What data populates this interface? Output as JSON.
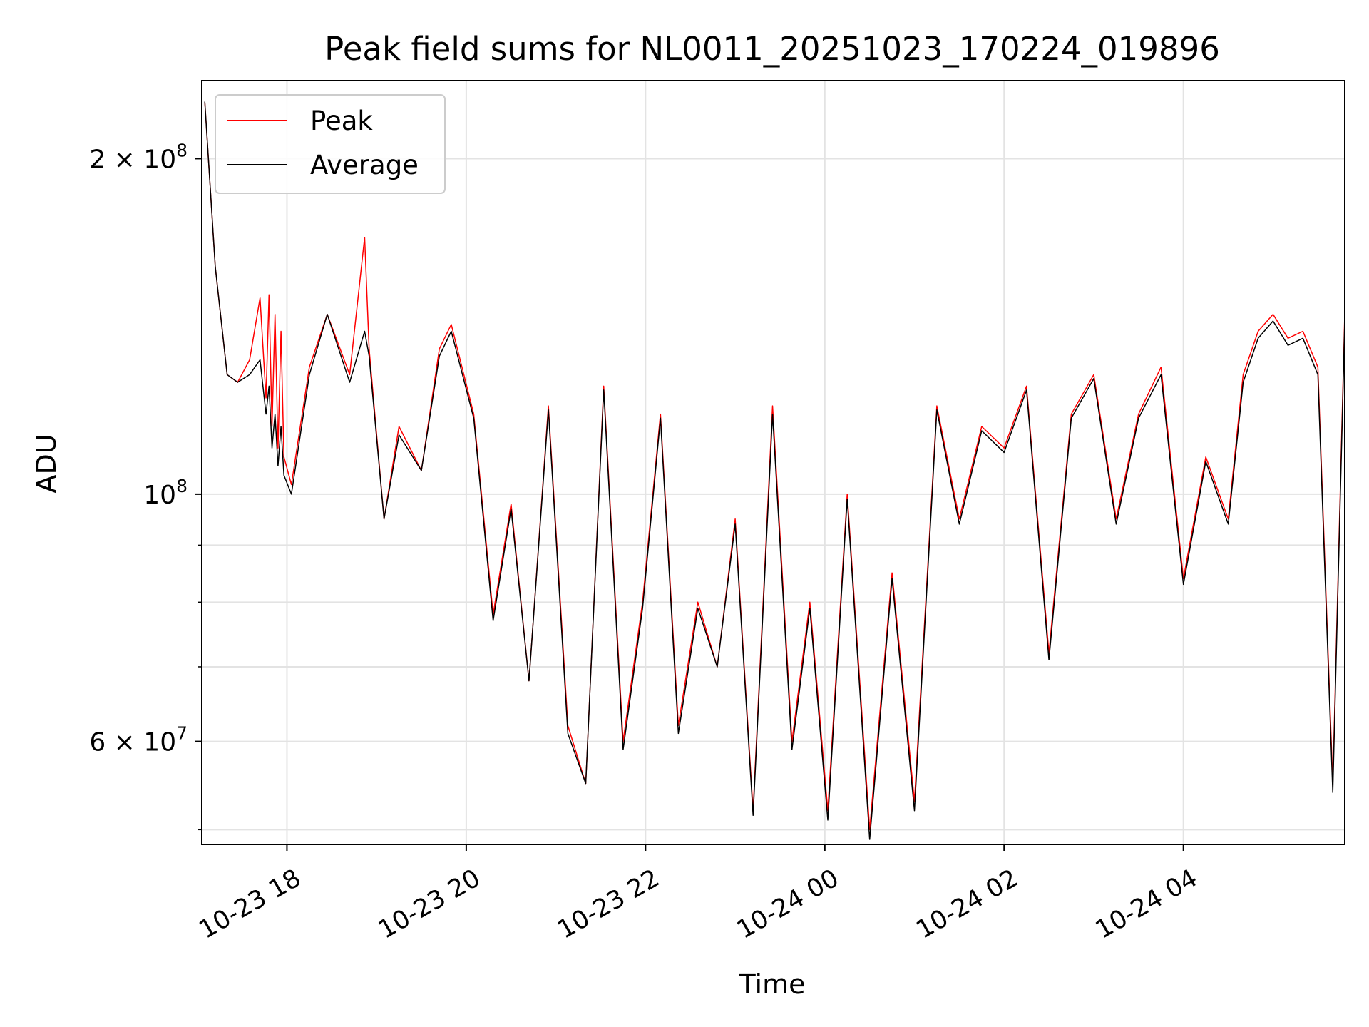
{
  "chart_data": {
    "type": "line",
    "title": "Peak field sums for NL0011_20251023_170224_019896",
    "xlabel": "Time",
    "ylabel": "ADU",
    "yscale": "log",
    "ylim": [
      48500000,
      235000000
    ],
    "xlim_hours": [
      17.05,
      5.8
    ],
    "grid": true,
    "legend_position": "upper-left",
    "x_ticks": [
      {
        "hour": 18,
        "label": "10-23 18"
      },
      {
        "hour": 20,
        "label": "10-23 20"
      },
      {
        "hour": 22,
        "label": "10-23 22"
      },
      {
        "hour": 24,
        "label": "10-24 00"
      },
      {
        "hour": 26,
        "label": "10-24 02"
      },
      {
        "hour": 28,
        "label": "10-24 04"
      }
    ],
    "y_major_ticks": [
      {
        "value": 60000000,
        "mantissa": "6",
        "label": "6 × 10^7"
      },
      {
        "value": 100000000,
        "mantissa": "",
        "label": "10^8"
      },
      {
        "value": 200000000,
        "mantissa": "2",
        "label": "2 × 10^8"
      }
    ],
    "y_minor_ticks": [
      50000000,
      70000000,
      80000000,
      90000000
    ],
    "series": [
      {
        "name": "Peak",
        "color": "#ff0000",
        "x": [
          "17:05",
          "17:12",
          "17:20",
          "17:27",
          "17:35",
          "17:42",
          "17:46",
          "17:48",
          "17:50",
          "17:52",
          "17:54",
          "17:56",
          "17:58",
          "18:03",
          "18:15",
          "18:27",
          "18:42",
          "18:52",
          "18:55",
          "19:05",
          "19:15",
          "19:30",
          "19:42",
          "19:50",
          "20:05",
          "20:18",
          "20:30",
          "20:42",
          "20:55",
          "21:08",
          "21:20",
          "21:32",
          "21:45",
          "21:58",
          "22:10",
          "22:22",
          "22:35",
          "22:48",
          "23:00",
          "23:12",
          "23:25",
          "23:38",
          "23:50",
          "24:02",
          "24:15",
          "24:30",
          "24:45",
          "25:00",
          "25:15",
          "25:30",
          "25:45",
          "26:00",
          "26:15",
          "26:30",
          "26:45",
          "27:00",
          "27:15",
          "27:30",
          "27:45",
          "28:00",
          "28:15",
          "28:30",
          "28:40",
          "28:50",
          "29:00",
          "29:10",
          "29:20",
          "29:30",
          "29:40",
          "29:48"
        ],
        "y": [
          225000000,
          160000000,
          128000000,
          126000000,
          132000000,
          150000000,
          122000000,
          151000000,
          115000000,
          145000000,
          110000000,
          140000000,
          108000000,
          102000000,
          130000000,
          145000000,
          128000000,
          170000000,
          135000000,
          95000000,
          115000000,
          105000000,
          135000000,
          142000000,
          118000000,
          78000000,
          98000000,
          68000000,
          120000000,
          62000000,
          55000000,
          125000000,
          60000000,
          80000000,
          118000000,
          62000000,
          80000000,
          70000000,
          95000000,
          52000000,
          120000000,
          60000000,
          80000000,
          52000000,
          100000000,
          50000000,
          85000000,
          53000000,
          120000000,
          95000000,
          115000000,
          110000000,
          125000000,
          72000000,
          118000000,
          128000000,
          95000000,
          118000000,
          130000000,
          84000000,
          108000000,
          95000000,
          128000000,
          140000000,
          145000000,
          138000000,
          140000000,
          130000000,
          55000000,
          145000000
        ]
      },
      {
        "name": "Average",
        "color": "#000000",
        "x": [
          "17:05",
          "17:12",
          "17:20",
          "17:27",
          "17:35",
          "17:42",
          "17:46",
          "17:48",
          "17:50",
          "17:52",
          "17:54",
          "17:56",
          "17:58",
          "18:03",
          "18:15",
          "18:27",
          "18:42",
          "18:52",
          "18:55",
          "19:05",
          "19:15",
          "19:30",
          "19:42",
          "19:50",
          "20:05",
          "20:18",
          "20:30",
          "20:42",
          "20:55",
          "21:08",
          "21:20",
          "21:32",
          "21:45",
          "21:58",
          "22:10",
          "22:22",
          "22:35",
          "22:48",
          "23:00",
          "23:12",
          "23:25",
          "23:38",
          "23:50",
          "24:02",
          "24:15",
          "24:30",
          "24:45",
          "25:00",
          "25:15",
          "25:30",
          "25:45",
          "26:00",
          "26:15",
          "26:30",
          "26:45",
          "27:00",
          "27:15",
          "27:30",
          "27:45",
          "28:00",
          "28:15",
          "28:30",
          "28:40",
          "28:50",
          "29:00",
          "29:10",
          "29:20",
          "29:30",
          "29:40",
          "29:48"
        ],
        "y": [
          225000000,
          160000000,
          128000000,
          126000000,
          128000000,
          132000000,
          118000000,
          125000000,
          110000000,
          118000000,
          106000000,
          115000000,
          104000000,
          100000000,
          128000000,
          145000000,
          126000000,
          140000000,
          133000000,
          95000000,
          113000000,
          105000000,
          133000000,
          140000000,
          117000000,
          77000000,
          97000000,
          68000000,
          119000000,
          61000000,
          55000000,
          124000000,
          59000000,
          79000000,
          117000000,
          61000000,
          79000000,
          70000000,
          94000000,
          51500000,
          118000000,
          59000000,
          79000000,
          51000000,
          99000000,
          49000000,
          84000000,
          52000000,
          119000000,
          94000000,
          114000000,
          109000000,
          124000000,
          71000000,
          117000000,
          127000000,
          94000000,
          117000000,
          128000000,
          83000000,
          107000000,
          94000000,
          126000000,
          138000000,
          143000000,
          136000000,
          138000000,
          128000000,
          54000000,
          143000000
        ]
      }
    ]
  }
}
